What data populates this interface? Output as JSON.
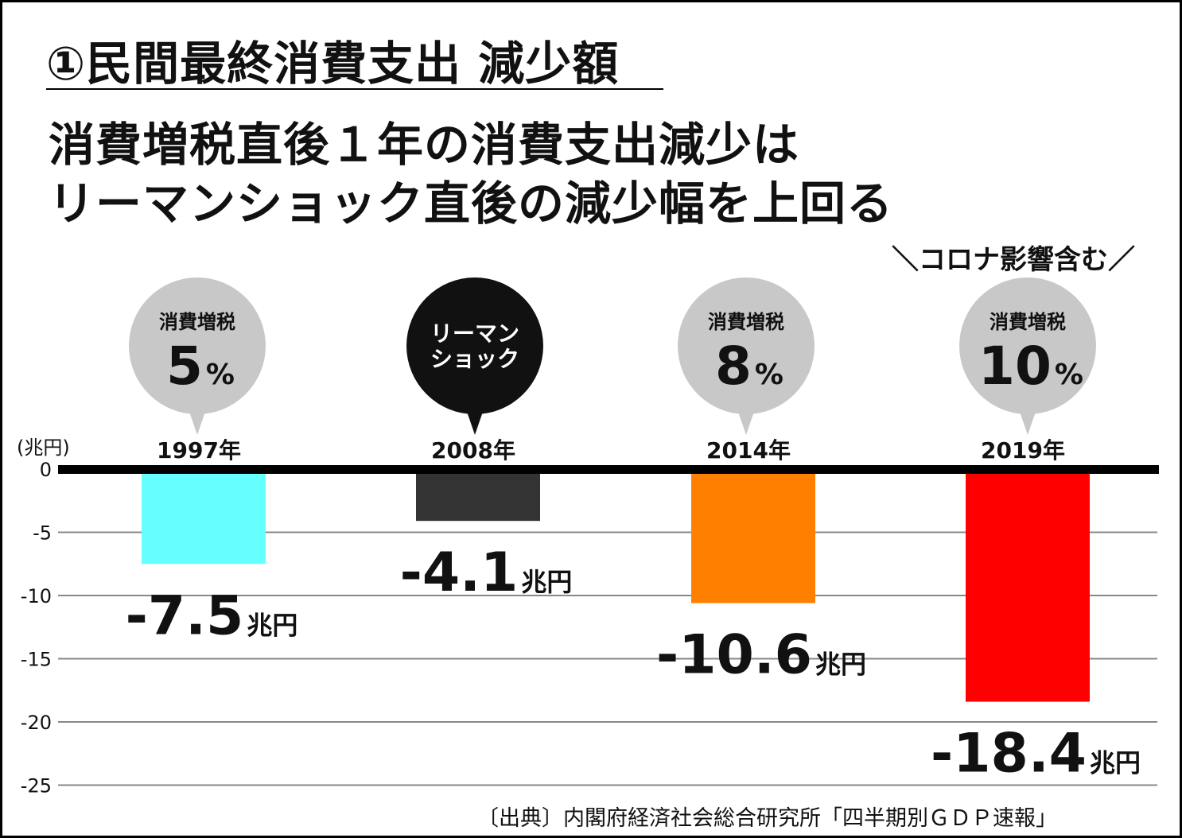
{
  "heading": "①民間最終消費支出 減少額",
  "subtitle_lines": [
    "消費増税直後１年の消費支出減少は",
    "リーマンショック直後の減少幅を上回る"
  ],
  "note": "＼コロナ影響含む／",
  "source": "〔出典〕内閣府経済社会総合研究所「四半期別ＧＤＰ速報」",
  "chart_data": {
    "type": "bar",
    "title": "①民間最終消費支出 減少額",
    "ylabel": "(兆円)",
    "unit_label": "兆円",
    "ylim": [
      -25,
      0
    ],
    "yticks": [
      0,
      -5,
      -10,
      -15,
      -20,
      -25
    ],
    "grid": true,
    "categories": [
      "1997年",
      "2008年",
      "2014年",
      "2019年"
    ],
    "values": [
      -7.5,
      -4.1,
      -10.6,
      -18.4
    ],
    "value_labels": [
      "-7.5",
      "-4.1",
      "-10.6",
      "-18.4"
    ],
    "colors": [
      "#66ffff",
      "#333333",
      "#ff8000",
      "#ff0000"
    ],
    "bubbles": [
      {
        "line1": "消費増税",
        "line2": "5",
        "pct": "%",
        "style": "gray"
      },
      {
        "line1": "リーマン",
        "line2": "ショック",
        "pct": "",
        "style": "black"
      },
      {
        "line1": "消費増税",
        "line2": "8",
        "pct": "%",
        "style": "gray"
      },
      {
        "line1": "消費増税",
        "line2": "10",
        "pct": "%",
        "style": "gray"
      }
    ]
  }
}
